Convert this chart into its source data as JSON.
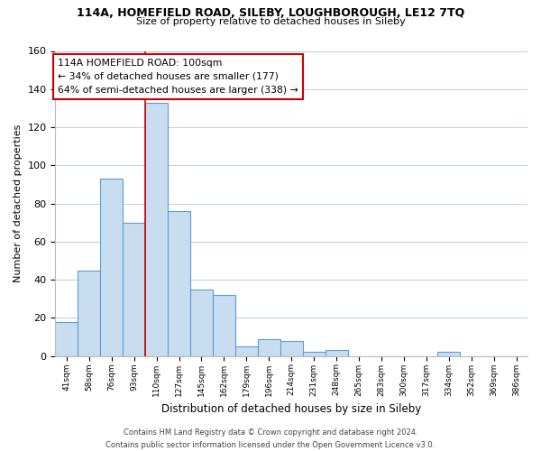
{
  "title": "114A, HOMEFIELD ROAD, SILEBY, LOUGHBOROUGH, LE12 7TQ",
  "subtitle": "Size of property relative to detached houses in Sileby",
  "xlabel": "Distribution of detached houses by size in Sileby",
  "ylabel": "Number of detached properties",
  "categories": [
    "41sqm",
    "58sqm",
    "76sqm",
    "93sqm",
    "110sqm",
    "127sqm",
    "145sqm",
    "162sqm",
    "179sqm",
    "196sqm",
    "214sqm",
    "231sqm",
    "248sqm",
    "265sqm",
    "283sqm",
    "300sqm",
    "317sqm",
    "334sqm",
    "352sqm",
    "369sqm",
    "386sqm"
  ],
  "values": [
    18,
    45,
    93,
    70,
    133,
    76,
    35,
    32,
    5,
    9,
    8,
    2,
    3,
    0,
    0,
    0,
    0,
    2,
    0,
    0,
    0
  ],
  "bar_color": "#c9ddf0",
  "bar_edge_color": "#5b9bd5",
  "property_line_color": "#cc0000",
  "property_line_index": 3.5,
  "ylim": [
    0,
    160
  ],
  "yticks": [
    0,
    20,
    40,
    60,
    80,
    100,
    120,
    140,
    160
  ],
  "annotation_title": "114A HOMEFIELD ROAD: 100sqm",
  "annotation_line1": "← 34% of detached houses are smaller (177)",
  "annotation_line2": "64% of semi-detached houses are larger (338) →",
  "annotation_box_color": "#ffffff",
  "annotation_box_edge": "#cc0000",
  "footer_line1": "Contains HM Land Registry data © Crown copyright and database right 2024.",
  "footer_line2": "Contains public sector information licensed under the Open Government Licence v3.0.",
  "background_color": "#ffffff",
  "grid_color": "#c0cfe0"
}
